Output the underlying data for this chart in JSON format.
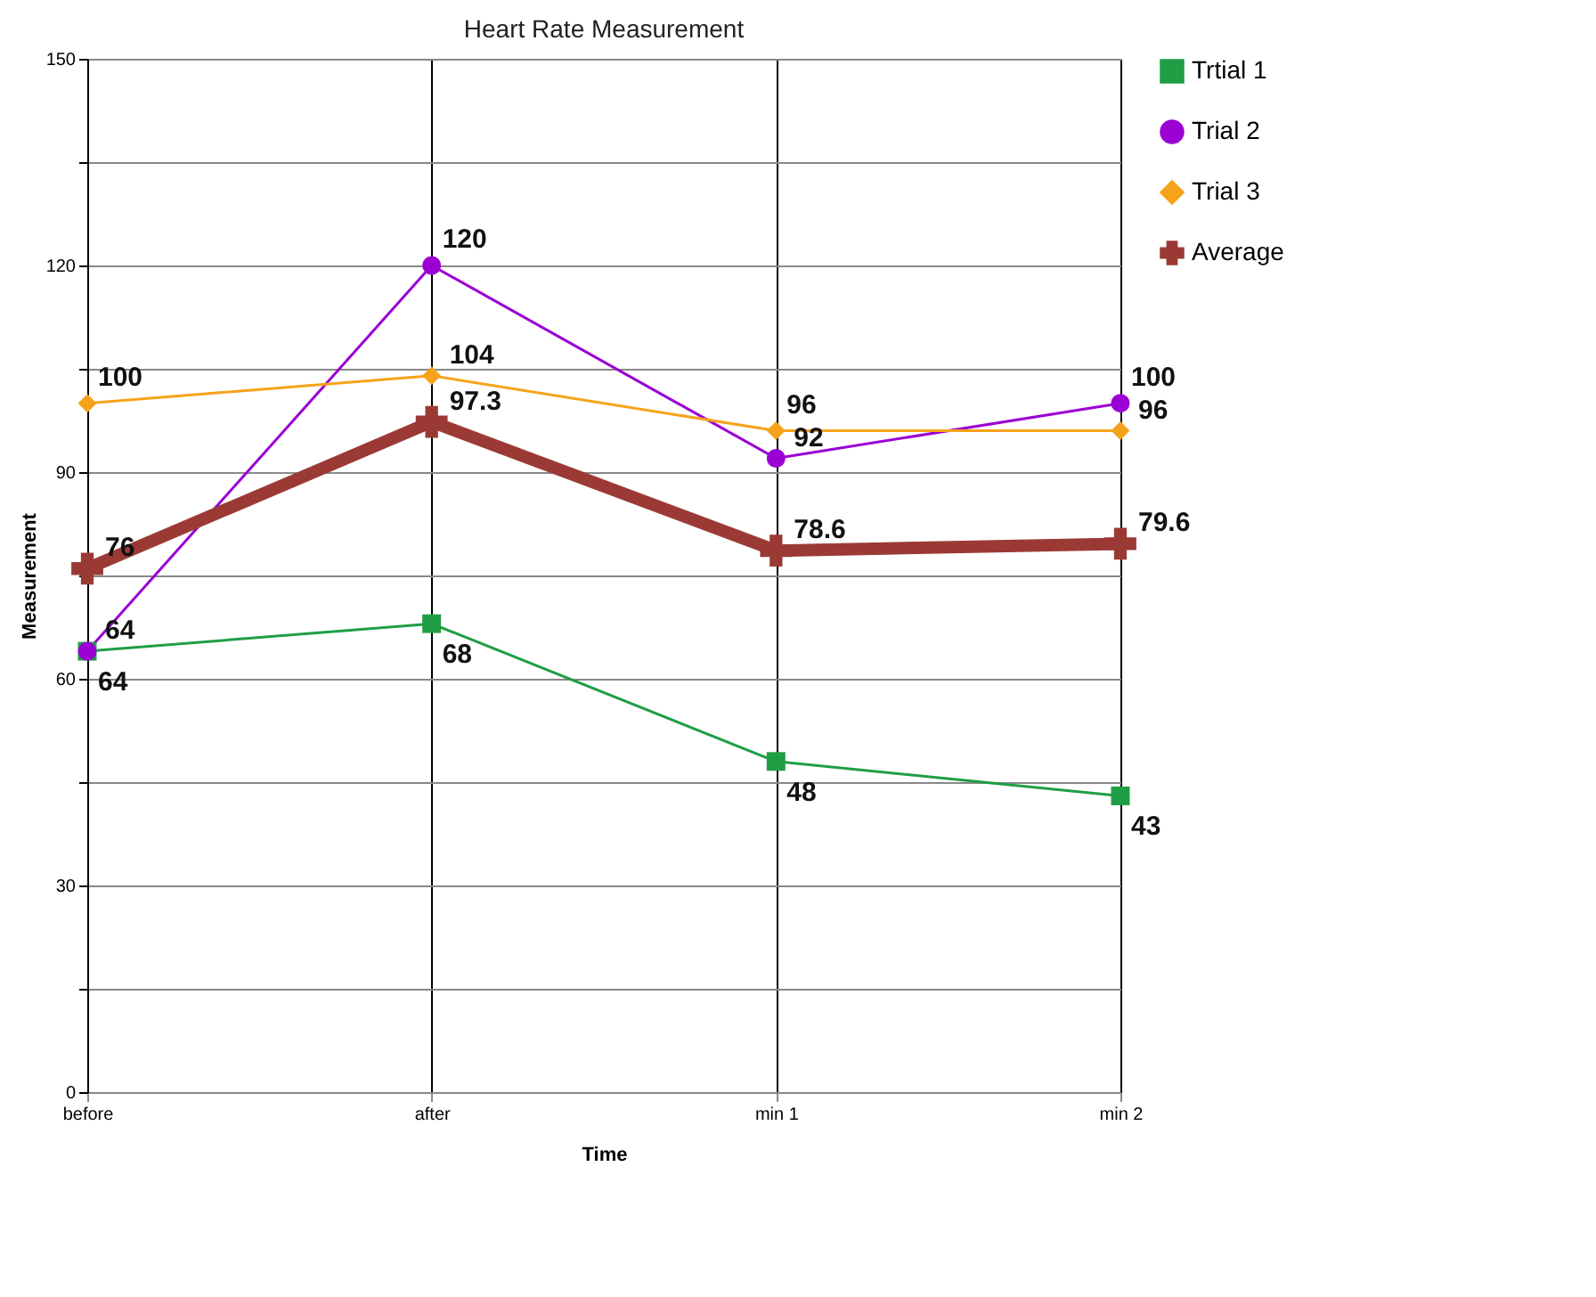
{
  "chart_data": {
    "type": "line",
    "title": "Heart Rate Measurement",
    "xlabel": "Time",
    "ylabel": "Measurement",
    "categories": [
      "before",
      "after",
      "min 1",
      "min 2"
    ],
    "series": [
      {
        "name": "Trtial 1",
        "color": "#1f9e45",
        "marker": "square",
        "values": [
          64,
          68,
          48,
          43
        ]
      },
      {
        "name": "Trial 2",
        "color": "#9b00d4",
        "marker": "circle",
        "values": [
          64,
          120,
          92,
          100
        ]
      },
      {
        "name": "Trial 3",
        "color": "#f5a31a",
        "marker": "diamond",
        "values": [
          100,
          104,
          96,
          96
        ]
      },
      {
        "name": "Average",
        "color": "#9b3a35",
        "marker": "cross",
        "values": [
          76,
          97.3,
          78.6,
          79.6
        ]
      }
    ],
    "ylim": [
      0,
      150
    ],
    "yticks": [
      0,
      {
        "value": 15,
        "label": null
      },
      30,
      {
        "value": 45,
        "label": null
      },
      60,
      {
        "value": 75,
        "label": null
      },
      90,
      {
        "value": 105,
        "label": null
      },
      120,
      {
        "value": 135,
        "label": null
      },
      150
    ],
    "grid": true,
    "legend": "right",
    "data_labels": true,
    "line_style": "solid"
  }
}
